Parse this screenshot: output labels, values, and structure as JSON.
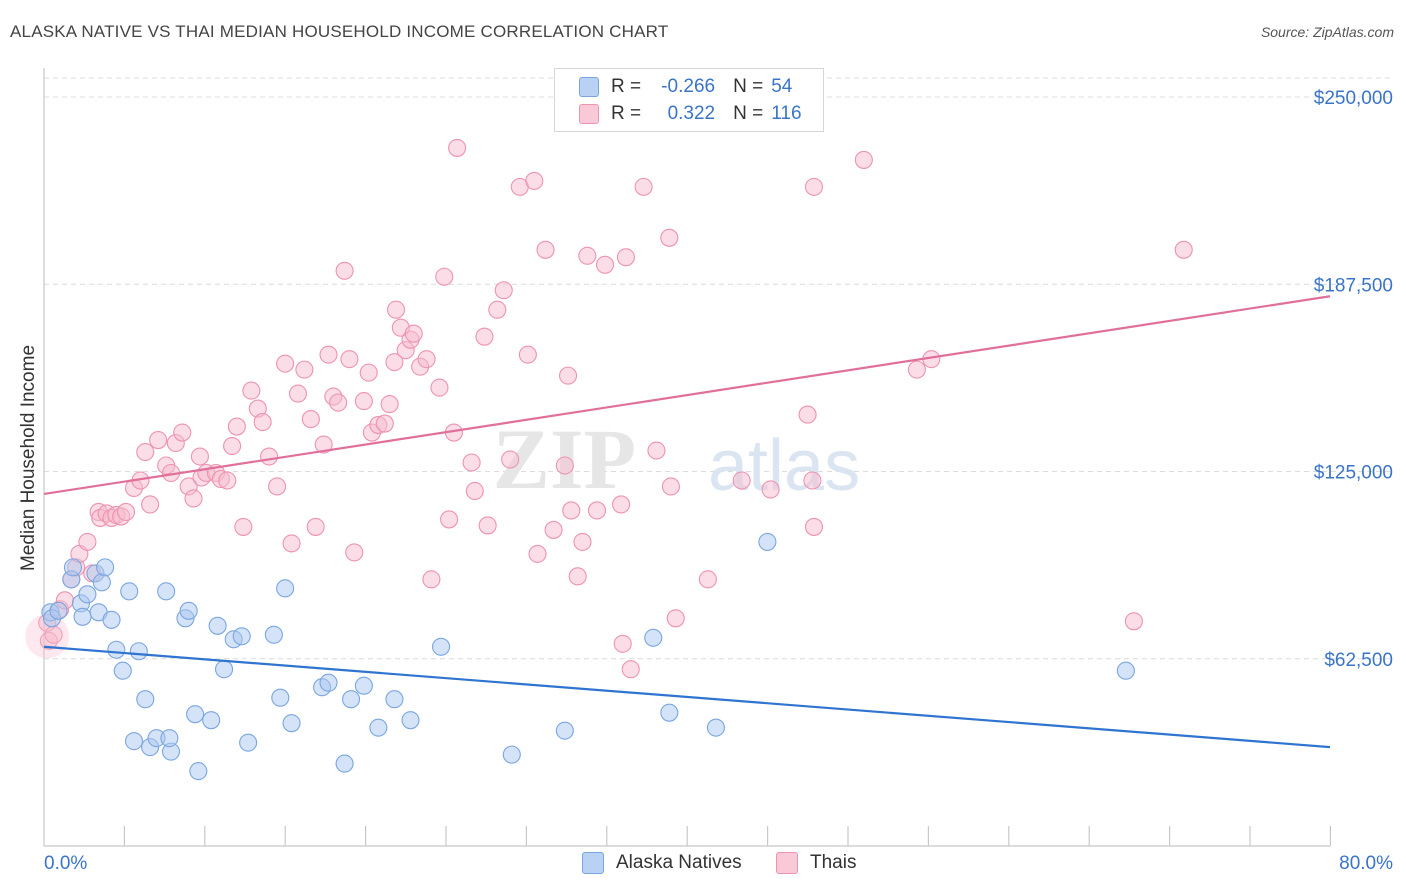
{
  "title": "ALASKA NATIVE VS THAI MEDIAN HOUSEHOLD INCOME CORRELATION CHART",
  "source": "Source: ZipAtlas.com",
  "watermark": {
    "zip": "ZIP",
    "atlas": "atlas"
  },
  "colors": {
    "blue_fill": "#a9c8f0",
    "blue_stroke": "#7aa6e0",
    "blue_line": "#2f74d0",
    "pink_fill": "#f6bccd",
    "pink_stroke": "#ee93b0",
    "pink_line": "#e0709a",
    "value_text": "#3a74c9",
    "grid": "#dcdcdc"
  },
  "legend_top": {
    "rows": [
      {
        "r_label": "R =",
        "r_value": "-0.266",
        "n_label": "N =",
        "n_value": "54",
        "series": "blue"
      },
      {
        "r_label": "R =",
        "r_value": "0.322",
        "n_label": "N =",
        "n_value": "116",
        "series": "pink"
      }
    ]
  },
  "legend_bottom": [
    {
      "label": "Alaska Natives",
      "series": "blue"
    },
    {
      "label": "Thais",
      "series": "pink"
    }
  ],
  "chart_data": {
    "type": "scatter",
    "title": "ALASKA NATIVE VS THAI MEDIAN HOUSEHOLD INCOME CORRELATION CHART",
    "xlabel": "",
    "ylabel": "Median Household Income",
    "xlim": [
      0,
      80
    ],
    "ylim": [
      0,
      262500
    ],
    "x_tick_labels": [
      "0.0%",
      "80.0%"
    ],
    "y_ticks": [
      62500,
      125000,
      187500,
      250000
    ],
    "y_tick_labels": [
      "$62,500",
      "$125,000",
      "$187,500",
      "$250,000"
    ],
    "grid": true,
    "legend_position": "top-center",
    "series": [
      {
        "name": "Alaska Natives",
        "color": "blue",
        "trend": {
          "x": [
            0,
            80
          ],
          "y": [
            66500,
            33000
          ]
        },
        "points": [
          [
            0.4,
            78000
          ],
          [
            0.5,
            76000
          ],
          [
            0.9,
            78500
          ],
          [
            1.7,
            89000
          ],
          [
            1.8,
            93000
          ],
          [
            2.3,
            81000
          ],
          [
            2.4,
            76500
          ],
          [
            2.7,
            84000
          ],
          [
            3.2,
            91000
          ],
          [
            3.4,
            78000
          ],
          [
            3.6,
            88000
          ],
          [
            3.8,
            93000
          ],
          [
            4.2,
            75500
          ],
          [
            4.5,
            65500
          ],
          [
            4.9,
            58500
          ],
          [
            5.3,
            85000
          ],
          [
            5.6,
            35000
          ],
          [
            5.9,
            65000
          ],
          [
            6.3,
            49000
          ],
          [
            6.6,
            33000
          ],
          [
            7.0,
            36000
          ],
          [
            7.6,
            85000
          ],
          [
            7.9,
            31500
          ],
          [
            7.8,
            36000
          ],
          [
            8.8,
            76000
          ],
          [
            9.0,
            78500
          ],
          [
            9.4,
            44000
          ],
          [
            9.6,
            25000
          ],
          [
            10.4,
            42000
          ],
          [
            10.8,
            73500
          ],
          [
            11.2,
            59000
          ],
          [
            11.8,
            69000
          ],
          [
            12.3,
            70000
          ],
          [
            12.7,
            34500
          ],
          [
            14.3,
            70500
          ],
          [
            14.7,
            49500
          ],
          [
            15.0,
            86000
          ],
          [
            15.4,
            41000
          ],
          [
            17.3,
            53000
          ],
          [
            17.7,
            54500
          ],
          [
            18.7,
            27500
          ],
          [
            19.1,
            49000
          ],
          [
            19.9,
            53500
          ],
          [
            20.8,
            39500
          ],
          [
            21.8,
            49000
          ],
          [
            22.8,
            42000
          ],
          [
            24.7,
            66500
          ],
          [
            29.1,
            30500
          ],
          [
            32.4,
            38500
          ],
          [
            37.9,
            69500
          ],
          [
            38.9,
            44500
          ],
          [
            41.8,
            39500
          ],
          [
            45.0,
            101500
          ],
          [
            67.3,
            58500
          ]
        ]
      },
      {
        "name": "Thais",
        "color": "pink",
        "trend": {
          "x": [
            0,
            80
          ],
          "y": [
            117500,
            183500
          ]
        },
        "points": [
          [
            0.2,
            74500
          ],
          [
            0.3,
            68500
          ],
          [
            0.6,
            70500
          ],
          [
            1.0,
            79000
          ],
          [
            1.3,
            82000
          ],
          [
            1.7,
            89000
          ],
          [
            2.0,
            93000
          ],
          [
            2.2,
            97500
          ],
          [
            2.7,
            101500
          ],
          [
            3.0,
            91000
          ],
          [
            3.4,
            111500
          ],
          [
            3.5,
            109500
          ],
          [
            3.9,
            111000
          ],
          [
            4.2,
            109500
          ],
          [
            4.5,
            110500
          ],
          [
            4.8,
            110000
          ],
          [
            5.1,
            111500
          ],
          [
            5.6,
            119500
          ],
          [
            6.0,
            122000
          ],
          [
            6.3,
            131500
          ],
          [
            6.6,
            114000
          ],
          [
            7.1,
            135500
          ],
          [
            7.6,
            127000
          ],
          [
            7.9,
            124500
          ],
          [
            8.2,
            134500
          ],
          [
            8.6,
            138000
          ],
          [
            9.0,
            120000
          ],
          [
            9.3,
            116000
          ],
          [
            9.7,
            130000
          ],
          [
            9.8,
            123000
          ],
          [
            10.1,
            124500
          ],
          [
            10.7,
            124500
          ],
          [
            11.0,
            122500
          ],
          [
            11.4,
            122000
          ],
          [
            11.7,
            133500
          ],
          [
            12.0,
            140000
          ],
          [
            12.4,
            106500
          ],
          [
            12.9,
            152000
          ],
          [
            13.3,
            146000
          ],
          [
            13.6,
            141500
          ],
          [
            14.0,
            130000
          ],
          [
            14.5,
            120000
          ],
          [
            15.0,
            161000
          ],
          [
            15.4,
            101000
          ],
          [
            15.8,
            151000
          ],
          [
            16.2,
            159000
          ],
          [
            16.6,
            142500
          ],
          [
            16.9,
            106500
          ],
          [
            17.4,
            134000
          ],
          [
            17.7,
            164000
          ],
          [
            18.0,
            150000
          ],
          [
            18.3,
            148000
          ],
          [
            18.7,
            192000
          ],
          [
            19.0,
            162500
          ],
          [
            19.3,
            98000
          ],
          [
            19.9,
            148500
          ],
          [
            20.2,
            158000
          ],
          [
            20.4,
            138000
          ],
          [
            20.8,
            140500
          ],
          [
            21.2,
            141000
          ],
          [
            21.5,
            147500
          ],
          [
            21.8,
            161500
          ],
          [
            21.9,
            179000
          ],
          [
            22.2,
            173000
          ],
          [
            22.5,
            165500
          ],
          [
            22.8,
            169000
          ],
          [
            23.0,
            171000
          ],
          [
            23.4,
            160000
          ],
          [
            23.8,
            162500
          ],
          [
            24.1,
            89000
          ],
          [
            24.6,
            153000
          ],
          [
            24.9,
            190000
          ],
          [
            25.2,
            109000
          ],
          [
            25.5,
            138000
          ],
          [
            25.7,
            233000
          ],
          [
            26.6,
            128000
          ],
          [
            26.8,
            118500
          ],
          [
            27.4,
            170000
          ],
          [
            27.6,
            107000
          ],
          [
            28.2,
            179000
          ],
          [
            28.6,
            185500
          ],
          [
            29.0,
            129000
          ],
          [
            29.6,
            220000
          ],
          [
            30.1,
            164000
          ],
          [
            30.5,
            222000
          ],
          [
            30.7,
            97500
          ],
          [
            31.2,
            199000
          ],
          [
            31.7,
            105500
          ],
          [
            32.4,
            127000
          ],
          [
            32.6,
            157000
          ],
          [
            32.8,
            112000
          ],
          [
            33.2,
            90000
          ],
          [
            33.5,
            101500
          ],
          [
            33.8,
            197000
          ],
          [
            34.4,
            112000
          ],
          [
            34.9,
            194000
          ],
          [
            35.9,
            114000
          ],
          [
            36.0,
            67500
          ],
          [
            36.2,
            196500
          ],
          [
            36.5,
            59000
          ],
          [
            37.3,
            220000
          ],
          [
            38.1,
            132000
          ],
          [
            38.9,
            203000
          ],
          [
            39.0,
            120000
          ],
          [
            39.3,
            76000
          ],
          [
            41.3,
            89000
          ],
          [
            43.4,
            122000
          ],
          [
            45.2,
            119000
          ],
          [
            47.5,
            144000
          ],
          [
            47.8,
            122000
          ],
          [
            47.9,
            106500
          ],
          [
            47.9,
            220000
          ],
          [
            51.0,
            229000
          ],
          [
            54.3,
            159000
          ],
          [
            55.2,
            162500
          ],
          [
            67.8,
            75000
          ],
          [
            70.9,
            199000
          ]
        ]
      }
    ]
  }
}
